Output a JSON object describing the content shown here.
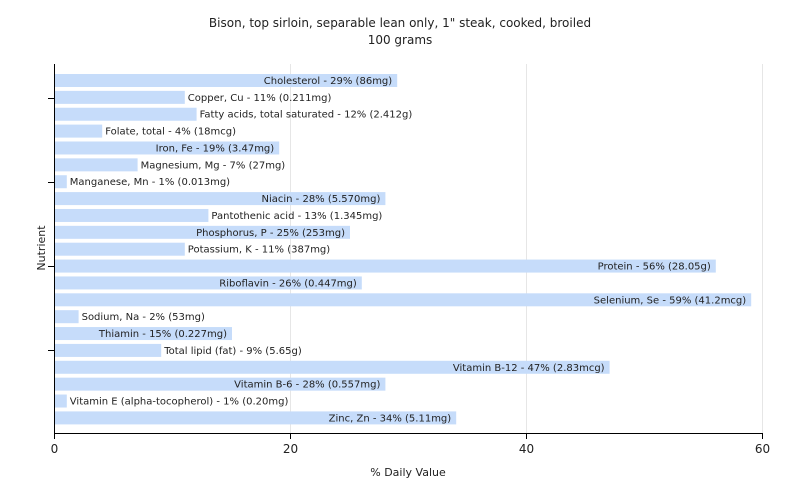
{
  "chart_data": {
    "type": "bar",
    "orientation": "horizontal",
    "title": "Bison, top sirloin, separable lean only, 1\" steak, cooked, broiled",
    "subtitle": "100 grams",
    "xlabel": "% Daily Value",
    "ylabel": "Nutrient",
    "xlim": [
      0,
      60
    ],
    "xticks": [
      0,
      20,
      40,
      60
    ],
    "grid": true,
    "bar_color": "#c6dcfa",
    "categories": [
      "Cholesterol",
      "Copper, Cu",
      "Fatty acids, total saturated",
      "Folate, total",
      "Iron, Fe",
      "Magnesium, Mg",
      "Manganese, Mn",
      "Niacin",
      "Pantothenic acid",
      "Phosphorus, P",
      "Potassium, K",
      "Protein",
      "Riboflavin",
      "Selenium, Se",
      "Sodium, Na",
      "Thiamin",
      "Total lipid (fat)",
      "Vitamin B-12",
      "Vitamin B-6",
      "Vitamin E (alpha-tocopherol)",
      "Zinc, Zn"
    ],
    "values": [
      29,
      11,
      12,
      4,
      19,
      7,
      1,
      28,
      13,
      25,
      11,
      56,
      26,
      59,
      2,
      15,
      9,
      47,
      28,
      1,
      34
    ],
    "labels": [
      "Cholesterol - 29% (86mg)",
      "Copper, Cu - 11% (0.211mg)",
      "Fatty acids, total saturated - 12% (2.412g)",
      "Folate, total - 4% (18mcg)",
      "Iron, Fe - 19% (3.47mg)",
      "Magnesium, Mg - 7% (27mg)",
      "Manganese, Mn - 1% (0.013mg)",
      "Niacin - 28% (5.570mg)",
      "Pantothenic acid - 13% (1.345mg)",
      "Phosphorus, P - 25% (253mg)",
      "Potassium, K - 11% (387mg)",
      "Protein - 56% (28.05g)",
      "Riboflavin - 26% (0.447mg)",
      "Selenium, Se - 59% (41.2mcg)",
      "Sodium, Na - 2% (53mg)",
      "Thiamin - 15% (0.227mg)",
      "Total lipid (fat) - 9% (5.65g)",
      "Vitamin B-12 - 47% (2.83mcg)",
      "Vitamin B-6 - 28% (0.557mg)",
      "Vitamin E (alpha-tocopherol) - 1% (0.20mg)",
      "Zinc, Zn - 34% (5.11mg)"
    ]
  }
}
